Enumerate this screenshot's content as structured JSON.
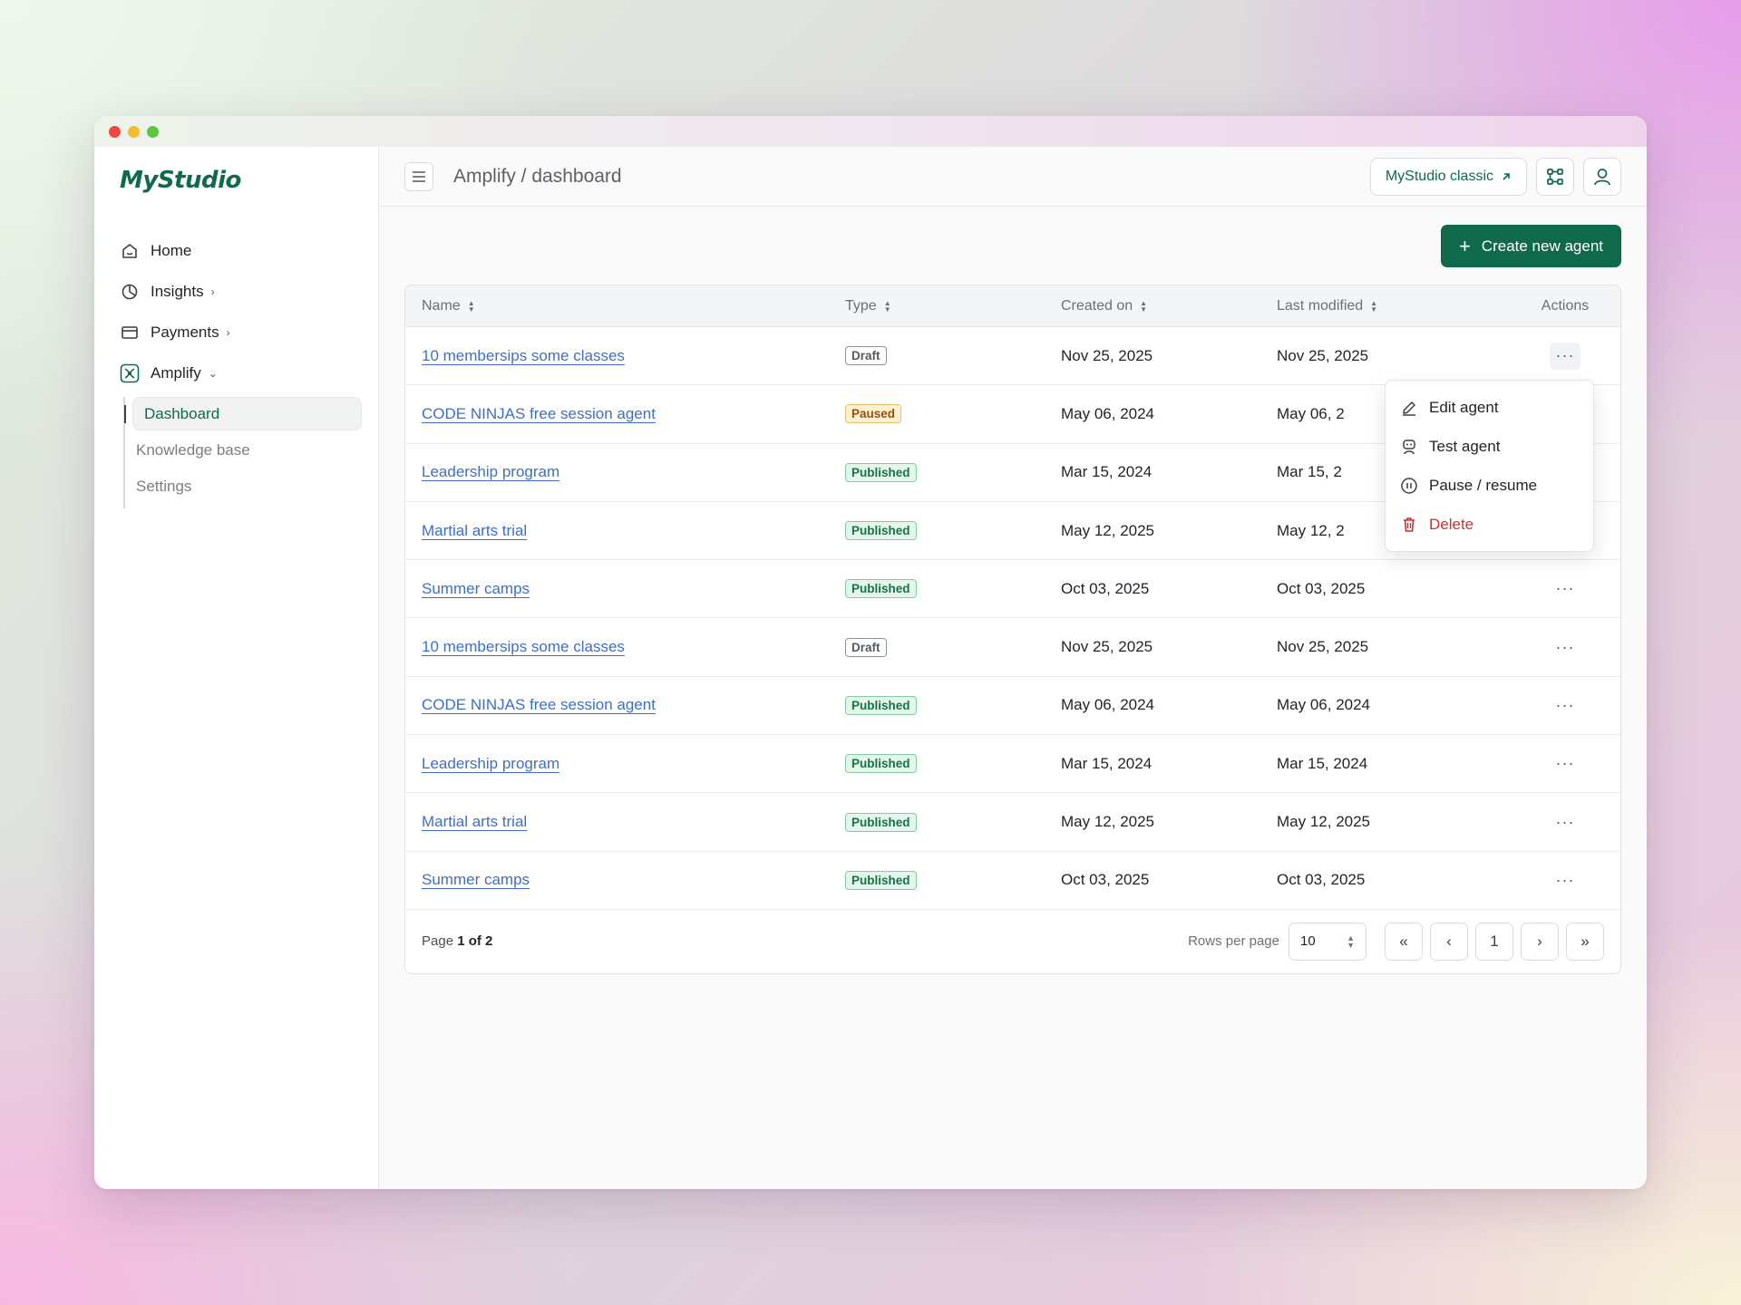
{
  "app": {
    "logo": "MyStudio"
  },
  "sidebar": {
    "items": [
      {
        "label": "Home",
        "icon": "home-icon"
      },
      {
        "label": "Insights",
        "icon": "pie-chart-icon"
      },
      {
        "label": "Payments",
        "icon": "card-icon"
      },
      {
        "label": "Amplify",
        "icon": "amplify-logo-icon"
      }
    ],
    "subitems": [
      {
        "label": "Dashboard"
      },
      {
        "label": "Knowledge base"
      },
      {
        "label": "Settings"
      }
    ]
  },
  "header": {
    "breadcrumb": "Amplify / dashboard",
    "classic_label": "MyStudio classic"
  },
  "create_button": {
    "label": "Create new agent"
  },
  "table": {
    "columns": [
      "Name",
      "Type",
      "Created on",
      "Last modified",
      "Actions"
    ],
    "rows": [
      {
        "name": "10 membersips some classes",
        "type": "Draft",
        "created": "Nov 25, 2025",
        "modified": "Nov 25, 2025"
      },
      {
        "name": "CODE NINJAS free session agent",
        "type": "Paused",
        "created": "May 06, 2024",
        "modified": "May 06, 2"
      },
      {
        "name": "Leadership program",
        "type": "Published",
        "created": "Mar 15, 2024",
        "modified": "Mar 15, 2"
      },
      {
        "name": "Martial arts trial",
        "type": "Published",
        "created": "May 12, 2025",
        "modified": "May 12, 2"
      },
      {
        "name": "Summer camps",
        "type": "Published",
        "created": "Oct 03, 2025",
        "modified": "Oct 03, 2025"
      },
      {
        "name": "10 membersips some classes",
        "type": "Draft",
        "created": "Nov 25, 2025",
        "modified": "Nov 25, 2025"
      },
      {
        "name": "CODE NINJAS free session agent",
        "type": "Published",
        "created": "May 06, 2024",
        "modified": "May 06, 2024"
      },
      {
        "name": "Leadership program",
        "type": "Published",
        "created": "Mar 15, 2024",
        "modified": "Mar 15, 2024"
      },
      {
        "name": "Martial arts trial",
        "type": "Published",
        "created": "May 12, 2025",
        "modified": "May 12, 2025"
      },
      {
        "name": "Summer camps",
        "type": "Published",
        "created": "Oct 03, 2025",
        "modified": "Oct 03, 2025"
      }
    ]
  },
  "dropdown": {
    "items": [
      {
        "label": "Edit agent",
        "icon": "pencil-icon"
      },
      {
        "label": "Test agent",
        "icon": "robot-icon"
      },
      {
        "label": "Pause / resume",
        "icon": "pause-circle-icon"
      },
      {
        "label": "Delete",
        "icon": "trash-icon"
      }
    ]
  },
  "pager": {
    "page_prefix": "Page",
    "page_value": "1 of 2",
    "rows_label": "Rows per page",
    "rows_value": "10",
    "current_page": "1"
  },
  "colors": {
    "accent": "#0f6a4b",
    "link": "#3f6fc4",
    "danger": "#d12f2f"
  }
}
